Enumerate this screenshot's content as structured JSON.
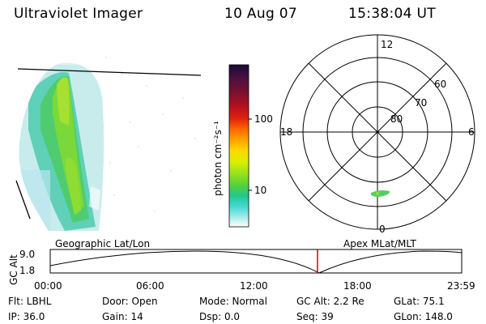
{
  "header": {
    "instrument": "Ultraviolet Imager",
    "date": "10 Aug 07",
    "time": "15:38:04 UT"
  },
  "colorbar": {
    "unit_label": "photon cm⁻²s⁻¹",
    "ticks": [
      "100",
      "10"
    ],
    "colors": [
      "#1a0a3a",
      "#4a1040",
      "#7a1030",
      "#b01020",
      "#e02010",
      "#ff6a00",
      "#ffa000",
      "#ffd800",
      "#d8f000",
      "#90e020",
      "#50d040",
      "#20c890",
      "#40d8d0",
      "#90e8e8",
      "#d8f4f4",
      "#ffffff"
    ]
  },
  "polar_plot": {
    "mlt_labels": [
      "12",
      "6",
      "0",
      "18"
    ],
    "lat_labels": [
      "60",
      "70",
      "80"
    ]
  },
  "timeline": {
    "left_title": "Geographic Lat/Lon",
    "right_title": "Apex MLat/MLT",
    "y_axis_label": "GC Alt",
    "y_ticks": [
      "9.0",
      "1.8"
    ],
    "x_ticks": [
      "00:00",
      "06:00",
      "12:00",
      "18:00",
      "23:59"
    ],
    "current_time_marker": "15:38:04",
    "marker_color": "#d00000"
  },
  "info": {
    "filter": "Flt: LBHL",
    "door": "Door: Open",
    "mode": "Mode: Normal",
    "gc_alt": "GC Alt: 2.2 Re",
    "glat": "GLat:  75.1",
    "ip": "IP: 36.0",
    "gain": "Gain: 14",
    "dsp": "Dsp:     0.0",
    "seq": "Seq: 39",
    "glon": "GLon: 148.0"
  }
}
